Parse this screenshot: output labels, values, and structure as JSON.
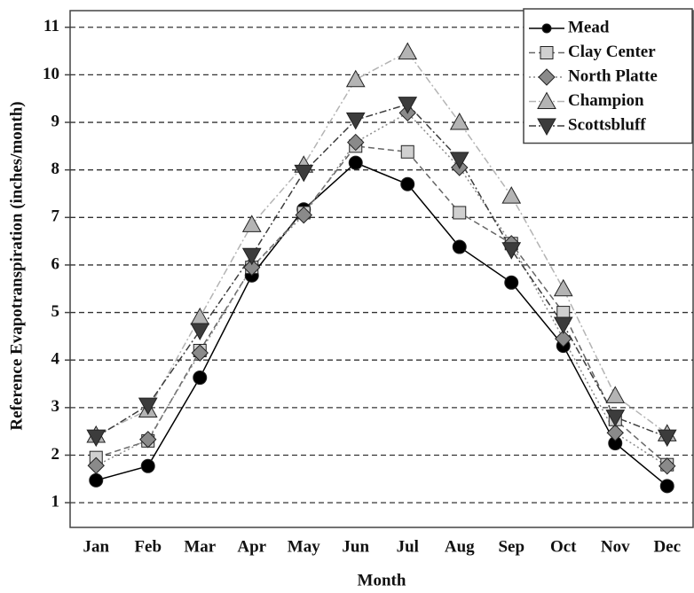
{
  "chart_data": {
    "type": "line",
    "x_label": "Month",
    "y_label": "Reference Evapotranspiration (inches/month)",
    "categories": [
      "Jan",
      "Feb",
      "Mar",
      "Apr",
      "May",
      "Jun",
      "Jul",
      "Aug",
      "Sep",
      "Oct",
      "Nov",
      "Dec"
    ],
    "series": [
      {
        "name": "Mead",
        "color": "#000000",
        "marker": "circle",
        "dash": "solid",
        "values": [
          1.47,
          1.77,
          3.63,
          5.78,
          7.17,
          8.15,
          7.7,
          6.38,
          5.63,
          4.3,
          2.25,
          1.35
        ]
      },
      {
        "name": "Clay Center",
        "color": "#d0d0d0",
        "marker": "square",
        "dash": "dashed",
        "values": [
          1.95,
          2.3,
          4.2,
          5.95,
          7.1,
          8.5,
          8.38,
          7.1,
          6.45,
          5.0,
          2.75,
          1.8
        ]
      },
      {
        "name": "North Platte",
        "color": "#8a8a8a",
        "marker": "diamond",
        "dash": "dotted",
        "values": [
          1.78,
          2.33,
          4.15,
          5.95,
          7.05,
          8.58,
          9.2,
          8.05,
          6.45,
          4.45,
          2.47,
          1.77
        ]
      },
      {
        "name": "Champion",
        "color": "#b4b4b4",
        "marker": "triangle-up",
        "dash": "dashdot",
        "values": [
          2.42,
          2.95,
          4.9,
          6.85,
          8.1,
          9.9,
          10.48,
          9.0,
          7.45,
          5.5,
          3.25,
          2.45
        ]
      },
      {
        "name": "Scottsbluff",
        "color": "#3c3c3c",
        "marker": "triangle-down",
        "dash": "dashdot",
        "values": [
          2.38,
          3.05,
          4.62,
          6.2,
          7.95,
          9.05,
          9.38,
          8.22,
          6.32,
          4.75,
          2.8,
          2.38
        ]
      }
    ],
    "ylim": [
      0.48,
      11.35
    ],
    "yticks": [
      1,
      2,
      3,
      4,
      5,
      6,
      7,
      8,
      9,
      10,
      11
    ],
    "grid": true,
    "legend": "upper right"
  }
}
